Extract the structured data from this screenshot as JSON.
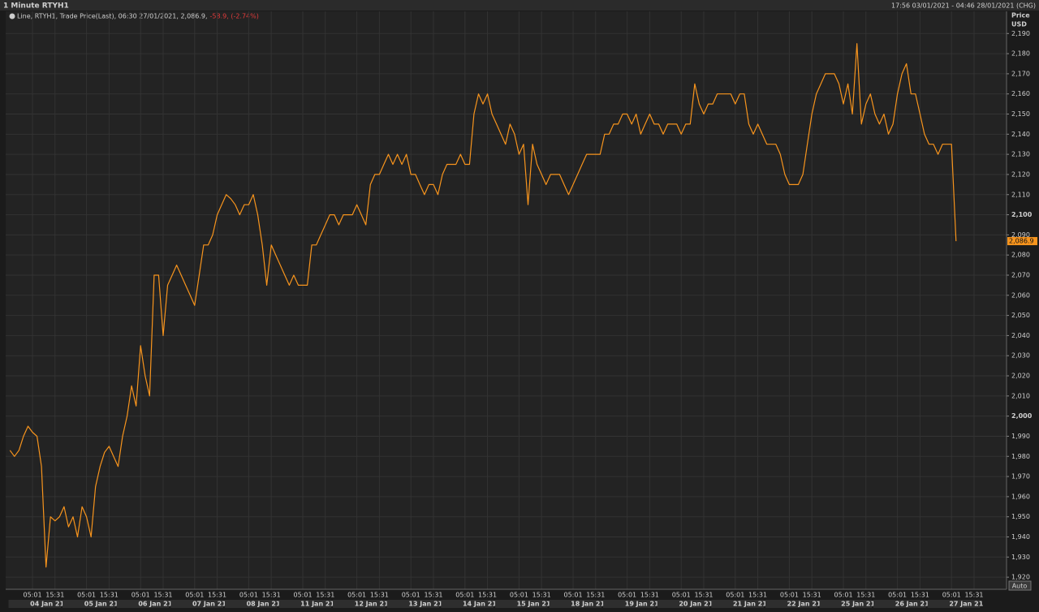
{
  "chart_data": {
    "type": "line",
    "title": "1 Minute RTYH1",
    "date_range": "17:56 03/01/2021 - 04:46 28/01/2021 (CHG)",
    "y_label": "Price",
    "y_unit": "USD",
    "auto_button": "Auto",
    "legend_change": "-58.9, (-2.74%)",
    "last_label": {
      "value": 2086.9,
      "label": "2,086.9"
    },
    "date_labels": [
      "04 Jan 21",
      "05 Jan 21",
      "06 Jan 21",
      "07 Jan 21",
      "08 Jan 21",
      "11 Jan 21",
      "12 Jan 21",
      "13 Jan 21",
      "14 Jan 21",
      "15 Jan 21",
      "18 Jan 21",
      "19 Jan 21",
      "20 Jan 21",
      "21 Jan 21",
      "22 Jan 21",
      "25 Jan 21",
      "26 Jan 21",
      "27 Jan 21"
    ],
    "categories": [
      null,
      null,
      null,
      null,
      null,
      "05:01",
      null,
      null,
      null,
      null,
      "15:31",
      null,
      null,
      null,
      null,
      null,
      null,
      "05:01",
      null,
      null,
      null,
      null,
      "15:31",
      null,
      null,
      null,
      null,
      null,
      null,
      "05:01",
      null,
      null,
      null,
      null,
      "15:31",
      null,
      null,
      null,
      null,
      null,
      null,
      "05:01",
      null,
      null,
      null,
      null,
      "15:31",
      null,
      null,
      null,
      null,
      null,
      null,
      "05:01",
      null,
      null,
      null,
      null,
      "15:31",
      null,
      null,
      null,
      null,
      null,
      null,
      "05:01",
      null,
      null,
      null,
      null,
      "15:31",
      null,
      null,
      null,
      null,
      null,
      null,
      "05:01",
      null,
      null,
      null,
      null,
      "15:31",
      null,
      null,
      null,
      null,
      null,
      null,
      "05:01",
      null,
      null,
      null,
      null,
      "15:31",
      null,
      null,
      null,
      null,
      null,
      null,
      "05:01",
      null,
      null,
      null,
      null,
      "15:31",
      null,
      null,
      null,
      null,
      null,
      null,
      "05:01",
      null,
      null,
      null,
      null,
      "15:31",
      null,
      null,
      null,
      null,
      null,
      null,
      "05:01",
      null,
      null,
      null,
      null,
      "15:31",
      null,
      null,
      null,
      null,
      null,
      null,
      "05:01",
      null,
      null,
      null,
      null,
      "15:31",
      null,
      null,
      null,
      null,
      null,
      null,
      "05:01",
      null,
      null,
      null,
      null,
      "15:31",
      null,
      null,
      null,
      null,
      null,
      null,
      "05:01",
      null,
      null,
      null,
      null,
      "15:31",
      null,
      null,
      null,
      null,
      null,
      null,
      "05:01",
      null,
      null,
      null,
      null,
      "15:31",
      null,
      null,
      null,
      null,
      null,
      null,
      "05:01",
      null,
      null,
      null,
      null,
      "15:31",
      null,
      null,
      null,
      null,
      null,
      null,
      "05:01",
      null,
      null,
      null,
      null,
      "15:31",
      null,
      null,
      null,
      null,
      null,
      null,
      "05:01",
      null,
      null,
      null,
      null,
      "15:31",
      null
    ],
    "series": [
      {
        "name": "Line, RTYH1, Trade Price(Last), 06:30 27/01/2021, 2,086.9,",
        "color": "#f7941d",
        "values": [
          1983,
          1980,
          1983,
          1990,
          1995,
          1992,
          1990,
          1975,
          1925,
          1950,
          1948,
          1950,
          1955,
          1945,
          1950,
          1940,
          1955,
          1950,
          1940,
          1965,
          1975,
          1982,
          1985,
          1980,
          1975,
          1990,
          2000,
          2015,
          2005,
          2035,
          2020,
          2010,
          2070,
          2070,
          2040,
          2065,
          2070,
          2075,
          2070,
          2065,
          2060,
          2055,
          2070,
          2085,
          2085,
          2090,
          2100,
          2105,
          2110,
          2108,
          2105,
          2100,
          2105,
          2105,
          2110,
          2100,
          2085,
          2065,
          2085,
          2080,
          2075,
          2070,
          2065,
          2070,
          2065,
          2065,
          2065,
          2085,
          2085,
          2090,
          2095,
          2100,
          2100,
          2095,
          2100,
          2100,
          2100,
          2105,
          2100,
          2095,
          2115,
          2120,
          2120,
          2125,
          2130,
          2125,
          2130,
          2125,
          2130,
          2120,
          2120,
          2115,
          2110,
          2115,
          2115,
          2110,
          2120,
          2125,
          2125,
          2125,
          2130,
          2125,
          2125,
          2150,
          2160,
          2155,
          2160,
          2150,
          2145,
          2140,
          2135,
          2145,
          2140,
          2130,
          2135,
          2105,
          2135,
          2125,
          2120,
          2115,
          2120,
          2120,
          2120,
          2115,
          2110,
          2115,
          2120,
          2125,
          2130,
          2130,
          2130,
          2130,
          2140,
          2140,
          2145,
          2145,
          2150,
          2150,
          2145,
          2150,
          2140,
          2145,
          2150,
          2145,
          2145,
          2140,
          2145,
          2145,
          2145,
          2140,
          2145,
          2145,
          2165,
          2155,
          2150,
          2155,
          2155,
          2160,
          2160,
          2160,
          2160,
          2155,
          2160,
          2160,
          2145,
          2140,
          2145,
          2140,
          2135,
          2135,
          2135,
          2130,
          2120,
          2115,
          2115,
          2115,
          2120,
          2135,
          2150,
          2160,
          2165,
          2170,
          2170,
          2170,
          2165,
          2155,
          2165,
          2150,
          2185,
          2145,
          2155,
          2160,
          2150,
          2145,
          2150,
          2140,
          2145,
          2160,
          2170,
          2175,
          2160,
          2160,
          2150,
          2140,
          2135,
          2135,
          2130,
          2135,
          2135,
          2135,
          2086.9,
          null,
          null,
          null,
          null,
          null
        ]
      }
    ],
    "ylim": [
      1914,
      2201
    ],
    "yticks": [
      {
        "value": 1920,
        "label": "1,920"
      },
      {
        "value": 1930,
        "label": "1,930"
      },
      {
        "value": 1940,
        "label": "1,940"
      },
      {
        "value": 1950,
        "label": "1,950"
      },
      {
        "value": 1960,
        "label": "1,960"
      },
      {
        "value": 1970,
        "label": "1,970"
      },
      {
        "value": 1980,
        "label": "1,980"
      },
      {
        "value": 1990,
        "label": "1,990"
      },
      {
        "value": 2000,
        "label": "2,000"
      },
      {
        "value": 2010,
        "label": "2,010"
      },
      {
        "value": 2020,
        "label": "2,020"
      },
      {
        "value": 2030,
        "label": "2,030"
      },
      {
        "value": 2040,
        "label": "2,040"
      },
      {
        "value": 2050,
        "label": "2,050"
      },
      {
        "value": 2060,
        "label": "2,060"
      },
      {
        "value": 2070,
        "label": "2,070"
      },
      {
        "value": 2080,
        "label": "2,080"
      },
      {
        "value": 2090,
        "label": "2,090"
      },
      {
        "value": 2100,
        "label": "2,100"
      },
      {
        "value": 2110,
        "label": "2,110"
      },
      {
        "value": 2120,
        "label": "2,120"
      },
      {
        "value": 2130,
        "label": "2,130"
      },
      {
        "value": 2140,
        "label": "2,140"
      },
      {
        "value": 2150,
        "label": "2,150"
      },
      {
        "value": 2160,
        "label": "2,160"
      },
      {
        "value": 2170,
        "label": "2,170"
      },
      {
        "value": 2180,
        "label": "2,180"
      },
      {
        "value": 2190,
        "label": "2,190"
      }
    ],
    "grid": true
  }
}
